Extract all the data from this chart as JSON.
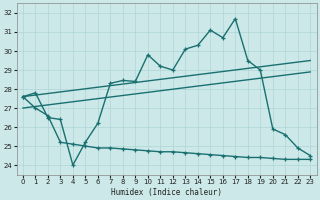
{
  "xlabel": "Humidex (Indice chaleur)",
  "xlim": [
    -0.5,
    23.5
  ],
  "ylim": [
    23.5,
    32.5
  ],
  "yticks": [
    24,
    25,
    26,
    27,
    28,
    29,
    30,
    31,
    32
  ],
  "xticks": [
    0,
    1,
    2,
    3,
    4,
    5,
    6,
    7,
    8,
    9,
    10,
    11,
    12,
    13,
    14,
    15,
    16,
    17,
    18,
    19,
    20,
    21,
    22,
    23
  ],
  "bg_color": "#cce8e8",
  "grid_color": "#aed4d4",
  "line_color": "#1a7070",
  "line_width": 1.0,
  "marker_size": 3.5,
  "main_line_x": [
    0,
    1,
    2,
    3,
    4,
    5,
    6,
    7,
    8,
    9,
    10,
    11,
    12,
    13,
    14,
    15,
    16,
    17,
    18,
    19,
    20,
    21,
    22,
    23
  ],
  "main_line_y": [
    27.6,
    27.8,
    26.5,
    26.4,
    24.0,
    25.2,
    26.2,
    28.3,
    28.45,
    28.4,
    29.8,
    29.2,
    29.0,
    30.1,
    30.3,
    31.1,
    30.7,
    31.7,
    29.5,
    29.0,
    25.9,
    25.6,
    24.9,
    24.5
  ],
  "upper_trend_x": [
    0,
    23
  ],
  "upper_trend_y": [
    27.6,
    29.5
  ],
  "lower_trend_x": [
    0,
    23
  ],
  "lower_trend_y": [
    27.0,
    28.9
  ],
  "bottom_line_x": [
    0,
    1,
    2,
    3,
    4,
    5,
    6,
    7,
    8,
    9,
    10,
    11,
    12,
    13,
    14,
    15,
    16,
    17,
    18,
    19,
    20,
    21,
    22,
    23
  ],
  "bottom_line_y": [
    27.6,
    27.0,
    26.6,
    25.2,
    25.1,
    25.0,
    24.9,
    24.9,
    24.85,
    24.8,
    24.75,
    24.7,
    24.7,
    24.65,
    24.6,
    24.55,
    24.5,
    24.45,
    24.4,
    24.4,
    24.35,
    24.3,
    24.3,
    24.3
  ]
}
